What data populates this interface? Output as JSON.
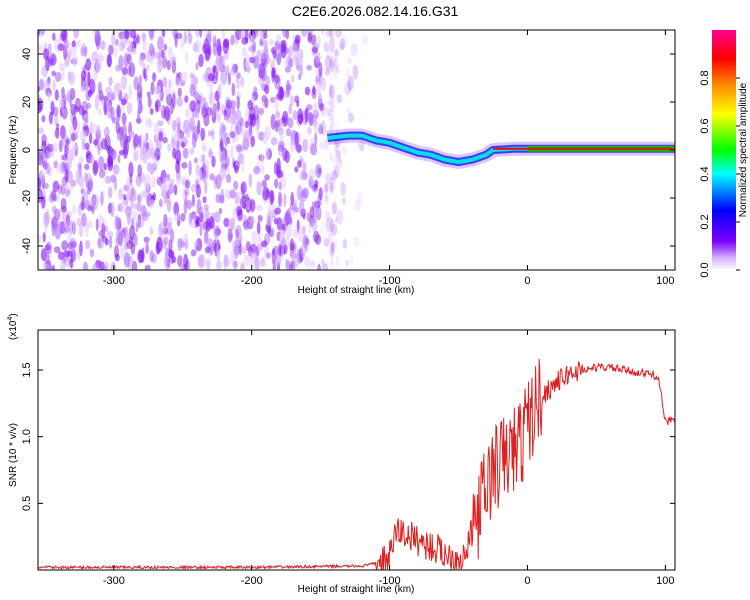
{
  "page_title": "C2E6.2026.082.14.16.G31",
  "chart_data": [
    {
      "type": "heatmap",
      "xlabel": "Height of straight line (km)",
      "ylabel": "Frequency (Hz)",
      "xlim": [
        -355,
        107
      ],
      "ylim": [
        -50,
        50
      ],
      "x_ticks": [
        -300,
        -200,
        -100,
        0,
        100
      ],
      "y_ticks": [
        -40,
        -20,
        0,
        20,
        40
      ],
      "colorbar": {
        "label": "Normalized spectral amplitude",
        "range": [
          0,
          1
        ],
        "ticks": [
          "0.0",
          "0.2",
          "0.4",
          "0.6",
          "0.8"
        ],
        "colors": [
          "#ffffff",
          "#7b00ff",
          "#0000ff",
          "#00ffff",
          "#00ff00",
          "#ffff00",
          "#ff8000",
          "#ff0000",
          "#ff00a0"
        ]
      },
      "noise_region_x": [
        -355,
        -120
      ],
      "signal_track": {
        "x": [
          -145,
          -130,
          -120,
          -110,
          -100,
          -90,
          -80,
          -70,
          -60,
          -50,
          -40,
          -30,
          -25,
          -10,
          0,
          107
        ],
        "freq": [
          5,
          6,
          6,
          4,
          3,
          1,
          -1,
          -2,
          -4,
          -5,
          -4,
          -2,
          0,
          0.5,
          0.5,
          0.5
        ]
      }
    },
    {
      "type": "line",
      "xlabel": "Height of straight line (km)",
      "ylabel": "SNR (10 * v/v)",
      "multiplier_label": "(x10",
      "multiplier_exp": "4",
      "xlim": [
        -355,
        107
      ],
      "ylim": [
        0,
        1.8
      ],
      "x_ticks": [
        -300,
        -200,
        -100,
        0,
        100
      ],
      "y_ticks": [
        "0.5",
        "1.0",
        "1.5"
      ],
      "line_color": "#e02020",
      "series": [
        {
          "x": [
            -355,
            -300,
            -200,
            -120,
            -105,
            -100,
            -95,
            -85,
            -75,
            -65,
            -55,
            -45,
            -40,
            -35,
            -30,
            -25,
            -20,
            -15,
            -10,
            -5,
            0,
            10,
            20,
            30,
            40,
            50,
            60,
            70,
            80,
            90,
            95,
            100,
            107
          ],
          "y": [
            0.02,
            0.02,
            0.02,
            0.03,
            0.06,
            0.1,
            0.3,
            0.25,
            0.2,
            0.15,
            0.1,
            0.1,
            0.3,
            0.45,
            0.6,
            0.75,
            0.8,
            0.85,
            0.9,
            0.95,
            1.1,
            1.3,
            1.4,
            1.47,
            1.5,
            1.52,
            1.52,
            1.5,
            1.48,
            1.47,
            1.45,
            1.1,
            1.15
          ]
        }
      ]
    }
  ]
}
